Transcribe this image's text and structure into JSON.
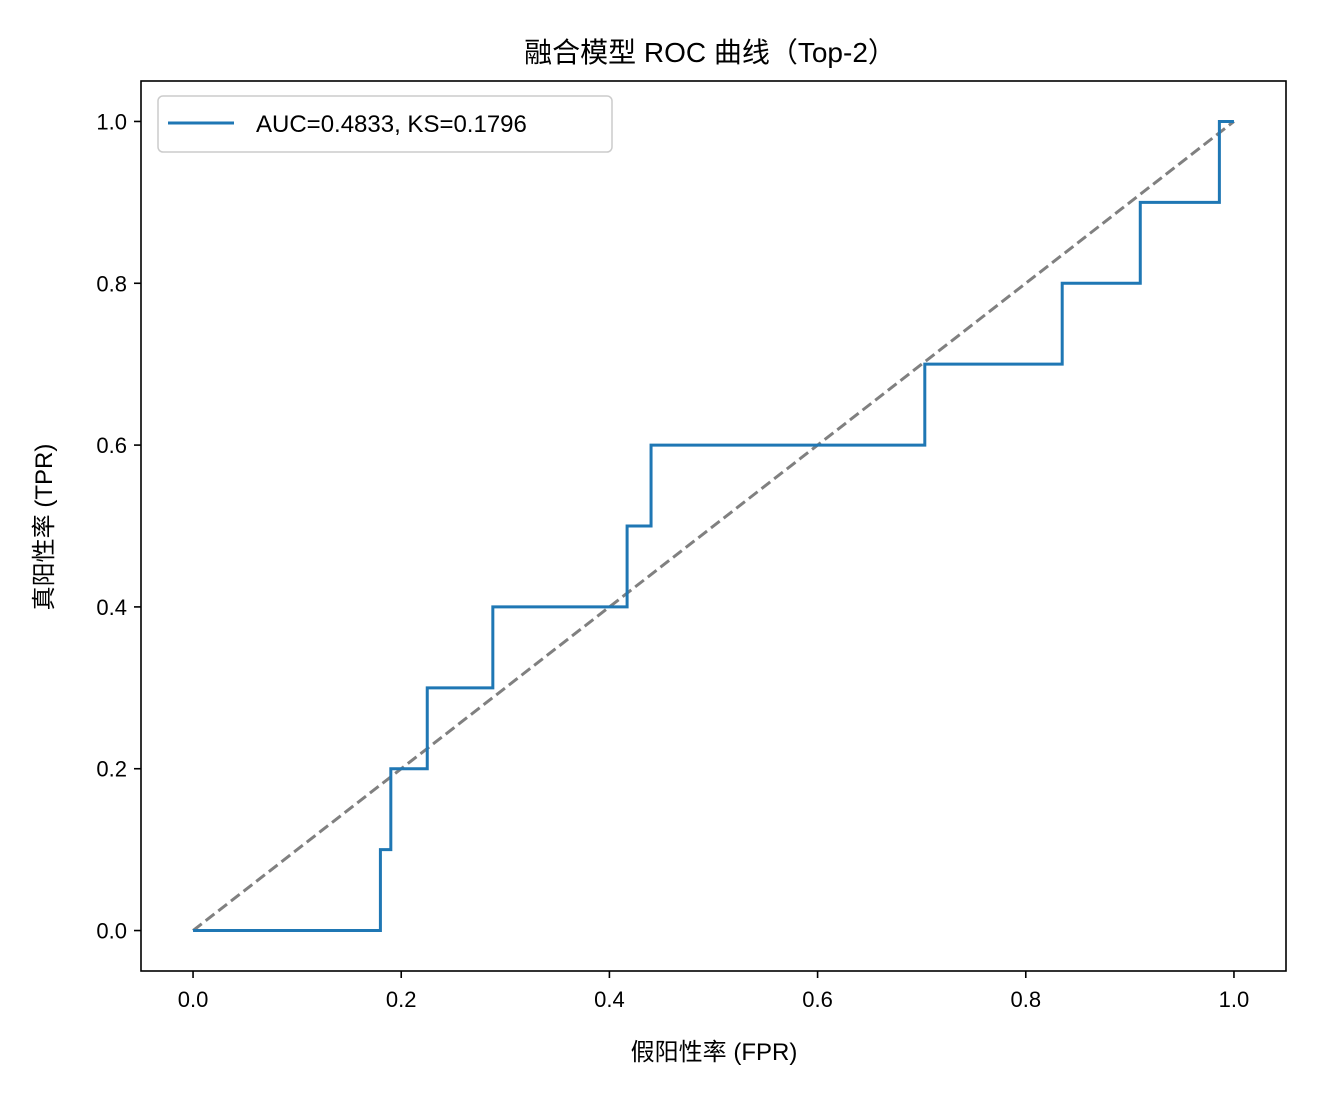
{
  "chart_data": {
    "type": "line",
    "title": "融合模型 ROC 曲线（Top-2）",
    "xlabel": "假阳性率 (FPR)",
    "ylabel": "真阳性率 (TPR)",
    "xlim": [
      -0.05,
      1.05
    ],
    "ylim": [
      -0.05,
      1.05
    ],
    "xticks": [
      0.0,
      0.2,
      0.4,
      0.6,
      0.8,
      1.0
    ],
    "yticks": [
      0.0,
      0.2,
      0.4,
      0.6,
      0.8,
      1.0
    ],
    "xtick_labels": [
      "0.0",
      "0.2",
      "0.4",
      "0.6",
      "0.8",
      "1.0"
    ],
    "ytick_labels": [
      "0.0",
      "0.2",
      "0.4",
      "0.6",
      "0.8",
      "1.0"
    ],
    "grid": false,
    "legend_position": "upper-left",
    "series": [
      {
        "name": "AUC=0.4833, KS=0.1796",
        "color": "#1f77b4",
        "style": "solid",
        "x": [
          0.0,
          0.18,
          0.18,
          0.19,
          0.19,
          0.225,
          0.225,
          0.288,
          0.288,
          0.417,
          0.417,
          0.44,
          0.44,
          0.703,
          0.703,
          0.835,
          0.835,
          0.91,
          0.91,
          0.986,
          0.986,
          1.0
        ],
        "y": [
          0.0,
          0.0,
          0.1,
          0.1,
          0.2,
          0.2,
          0.3,
          0.3,
          0.4,
          0.4,
          0.5,
          0.5,
          0.6,
          0.6,
          0.7,
          0.7,
          0.8,
          0.8,
          0.9,
          0.9,
          1.0,
          1.0
        ]
      },
      {
        "color": "#808080",
        "style": "dashed",
        "x": [
          0.0,
          1.0
        ],
        "y": [
          0.0,
          1.0
        ]
      }
    ]
  }
}
